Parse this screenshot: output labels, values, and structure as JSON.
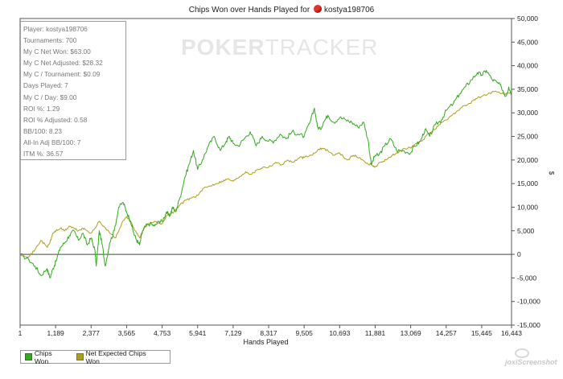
{
  "title": {
    "prefix": "Chips Won over Hands Played for",
    "player": "kostya198706",
    "suit_icon": "red-suit-icon"
  },
  "watermark": {
    "bold": "POKER",
    "thin": "TRACKER"
  },
  "stats": [
    "Player: kostya198706",
    "Tournaments: 700",
    "My C Net Won: $63.00",
    "My C Net Adjusted: $28.32",
    "My C / Tournament: $0.09",
    "Days Played: 7",
    "My C / Day: $9.00",
    "ROI %: 1.29",
    "ROI % Adjusted: 0.58",
    "BB/100: 8.23",
    "All-In Adj BB/100: 7",
    "ITM %: 36.57"
  ],
  "legend": {
    "chips_won": "Chips Won",
    "net_expected": "Net Expected Chips Won"
  },
  "colors": {
    "chips_won": "#33aa1d",
    "net_expected": "#aaa01e",
    "zero_line": "#444444"
  },
  "screenshot_logo": "joxiScreenshot",
  "chart_data": {
    "type": "line",
    "title": "Chips Won over Hands Played for kostya198706",
    "xlabel": "Hands Played",
    "ylabel": "$",
    "xlim": [
      1,
      16443
    ],
    "ylim": [
      -15000,
      50000
    ],
    "x_ticks": [
      1,
      1189,
      2377,
      3565,
      4753,
      5941,
      7129,
      8317,
      9505,
      10693,
      11881,
      13069,
      14257,
      15445,
      16443
    ],
    "x_tick_labels": [
      "1",
      "1,189",
      "2,377",
      "3,565",
      "4,753",
      "5,941",
      "7,129",
      "8,317",
      "9,505",
      "10,693",
      "11,881",
      "13,069",
      "14,257",
      "15,445",
      "16,443"
    ],
    "y_ticks": [
      -15000,
      -10000,
      -5000,
      0,
      5000,
      10000,
      15000,
      20000,
      25000,
      30000,
      35000,
      40000,
      45000,
      50000
    ],
    "y_tick_labels": [
      "-15,000",
      "-10,000",
      "-5,000",
      "0",
      "5,000",
      "10,000",
      "15,000",
      "20,000",
      "25,000",
      "30,000",
      "35,000",
      "40,000",
      "45,000",
      "50,000"
    ],
    "legend_position": "bottom-left",
    "series": [
      {
        "name": "Chips Won",
        "x": [
          1,
          300,
          500,
          700,
          900,
          1000,
          1100,
          1200,
          1350,
          1500,
          1650,
          1800,
          1950,
          2100,
          2250,
          2377,
          2500,
          2550,
          2650,
          2750,
          2850,
          3000,
          3150,
          3300,
          3450,
          3565,
          3700,
          3800,
          3900,
          4000,
          4100,
          4200,
          4350,
          4500,
          4650,
          4753,
          4900,
          5000,
          5100,
          5200,
          5350,
          5500,
          5650,
          5800,
          5941,
          6100,
          6300,
          6500,
          6700,
          6900,
          7000,
          7129,
          7300,
          7500,
          7700,
          7900,
          8100,
          8317,
          8500,
          8700,
          8900,
          9100,
          9300,
          9505,
          9700,
          9850,
          9950,
          10050,
          10150,
          10300,
          10500,
          10693,
          10900,
          11100,
          11300,
          11500,
          11650,
          11750,
          11881,
          12000,
          12200,
          12400,
          12600,
          12800,
          13069,
          13200,
          13400,
          13550,
          13700,
          13900,
          14100,
          14257,
          14500,
          14700,
          14900,
          15100,
          15300,
          15445,
          15600,
          15800,
          15950,
          16100,
          16250,
          16350,
          16443
        ],
        "y": [
          0,
          -1200,
          -2500,
          -4500,
          -3000,
          -5000,
          -3000,
          -1500,
          1500,
          2500,
          4000,
          5000,
          3000,
          4500,
          2000,
          3500,
          1000,
          -2500,
          5000,
          2000,
          -2500,
          2500,
          5000,
          10000,
          11000,
          9000,
          7000,
          4500,
          3000,
          2000,
          5000,
          6000,
          6500,
          6000,
          7000,
          7000,
          9000,
          8000,
          10000,
          9000,
          12000,
          16000,
          19000,
          22000,
          18000,
          20000,
          23000,
          25000,
          22000,
          24000,
          25000,
          23500,
          23000,
          24500,
          26000,
          23000,
          25000,
          24000,
          24000,
          25500,
          24500,
          26000,
          25500,
          25000,
          28000,
          31000,
          27000,
          26500,
          28000,
          29500,
          28000,
          29000,
          28500,
          28000,
          27000,
          28000,
          24000,
          19000,
          21000,
          21000,
          23000,
          24500,
          22000,
          22000,
          21500,
          23000,
          24000,
          26500,
          25000,
          27500,
          28500,
          30500,
          32000,
          34000,
          35500,
          37000,
          38500,
          38000,
          39000,
          37000,
          36500,
          35500,
          33500,
          35500,
          34000
        ]
      },
      {
        "name": "Net Expected Chips Won",
        "x": [
          1,
          300,
          500,
          700,
          900,
          1000,
          1100,
          1200,
          1350,
          1500,
          1650,
          1800,
          1950,
          2100,
          2250,
          2377,
          2500,
          2650,
          2800,
          3000,
          3200,
          3400,
          3565,
          3700,
          3850,
          4000,
          4150,
          4300,
          4500,
          4753,
          4950,
          5150,
          5350,
          5550,
          5750,
          5941,
          6150,
          6350,
          6550,
          6750,
          6950,
          7129,
          7350,
          7550,
          7750,
          7950,
          8150,
          8317,
          8550,
          8750,
          8950,
          9150,
          9350,
          9505,
          9750,
          9950,
          10100,
          10300,
          10500,
          10693,
          10950,
          11150,
          11350,
          11550,
          11750,
          11881,
          12050,
          12250,
          12450,
          12650,
          12850,
          13069,
          13250,
          13450,
          13650,
          13850,
          14050,
          14257,
          14450,
          14650,
          14850,
          15050,
          15250,
          15445,
          15650,
          15850,
          16050,
          16250,
          16443
        ],
        "y": [
          0,
          -500,
          1000,
          3000,
          1500,
          2500,
          4500,
          5000,
          5500,
          5000,
          6000,
          5500,
          5000,
          5500,
          5000,
          4500,
          5500,
          7000,
          6000,
          4500,
          3500,
          6500,
          8000,
          7000,
          5000,
          3500,
          5500,
          6500,
          7000,
          6500,
          8500,
          9000,
          10500,
          11500,
          12000,
          12500,
          14000,
          14500,
          15000,
          15500,
          16000,
          15500,
          16500,
          17500,
          17000,
          18000,
          18500,
          18500,
          19500,
          19000,
          20000,
          19500,
          20500,
          20500,
          21000,
          22000,
          22500,
          22000,
          21000,
          21500,
          20000,
          21000,
          20500,
          19500,
          19000,
          18500,
          19500,
          20000,
          21000,
          21500,
          22500,
          22500,
          23500,
          24000,
          25500,
          26500,
          27500,
          28500,
          29500,
          30500,
          31500,
          32000,
          33000,
          33500,
          34000,
          34500,
          34200,
          34000,
          34500
        ]
      }
    ]
  }
}
